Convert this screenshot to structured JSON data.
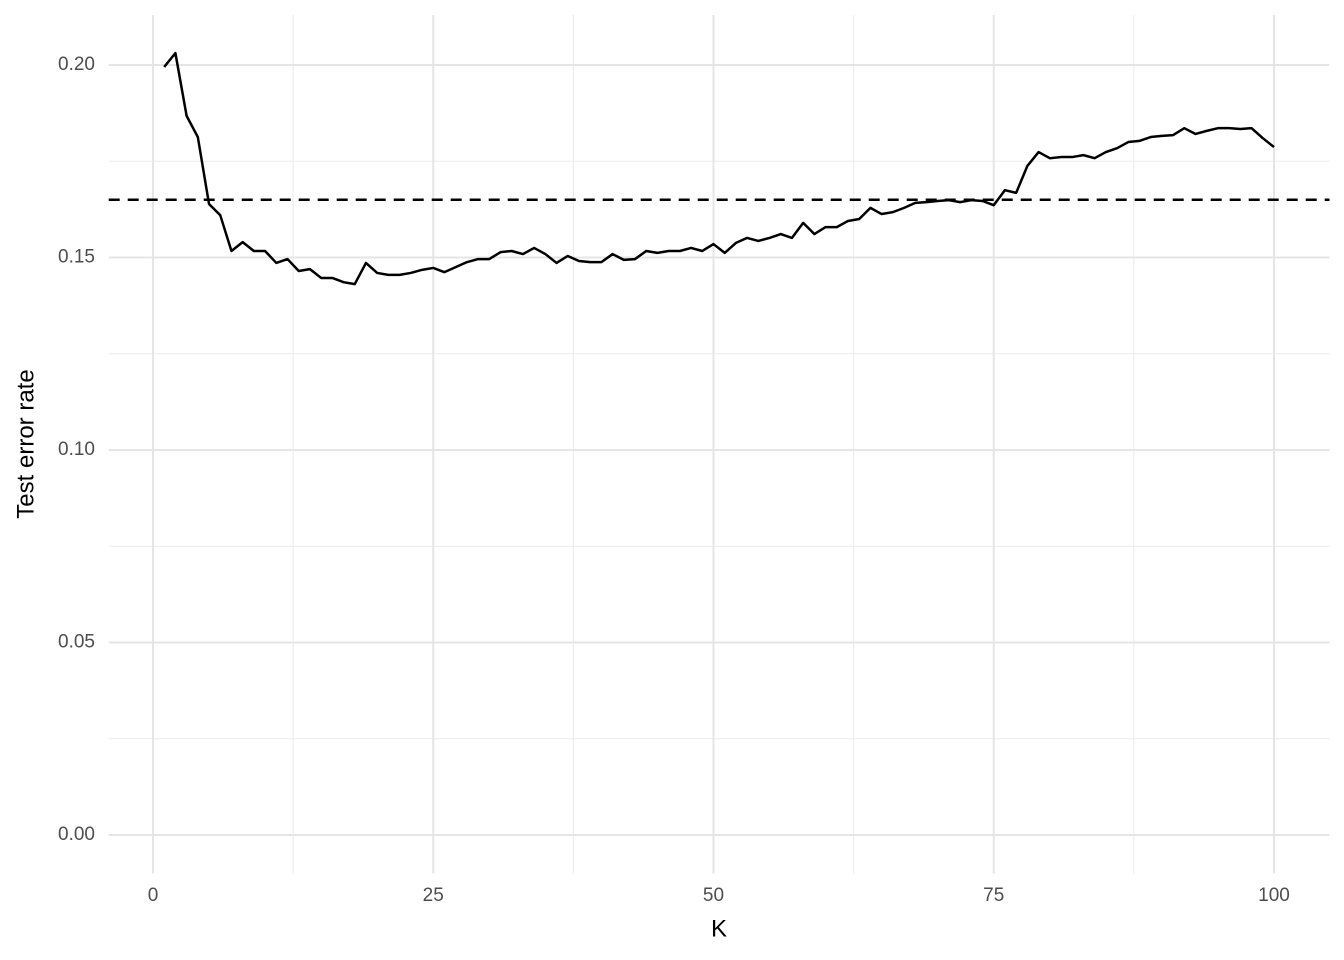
{
  "chart_data": {
    "type": "line",
    "x_label": "K",
    "y_label": "Test error rate",
    "x": [
      1,
      2,
      3,
      4,
      5,
      6,
      7,
      8,
      9,
      10,
      11,
      12,
      13,
      14,
      15,
      16,
      17,
      18,
      19,
      20,
      21,
      22,
      23,
      24,
      25,
      26,
      27,
      28,
      29,
      30,
      31,
      32,
      33,
      34,
      35,
      36,
      37,
      38,
      39,
      40,
      41,
      42,
      43,
      44,
      45,
      46,
      47,
      48,
      49,
      50,
      51,
      52,
      53,
      54,
      55,
      56,
      57,
      58,
      59,
      60,
      61,
      62,
      63,
      64,
      65,
      66,
      67,
      68,
      69,
      70,
      71,
      72,
      73,
      74,
      75,
      76,
      77,
      78,
      79,
      80,
      81,
      82,
      83,
      84,
      85,
      86,
      87,
      88,
      89,
      90,
      91,
      92,
      93,
      94,
      95,
      96,
      97,
      98,
      99,
      100
    ],
    "values": [
      0.1995,
      0.2031,
      0.1868,
      0.1813,
      0.1639,
      0.161,
      0.1517,
      0.154,
      0.1517,
      0.1517,
      0.1486,
      0.1496,
      0.1465,
      0.147,
      0.1447,
      0.1447,
      0.1436,
      0.1431,
      0.1486,
      0.146,
      0.1455,
      0.1455,
      0.146,
      0.1468,
      0.1473,
      0.1462,
      0.1475,
      0.1488,
      0.1496,
      0.1496,
      0.1514,
      0.1517,
      0.1509,
      0.1525,
      0.1509,
      0.1486,
      0.1504,
      0.1491,
      0.1488,
      0.1488,
      0.1509,
      0.1494,
      0.1496,
      0.1517,
      0.1512,
      0.1517,
      0.1517,
      0.1525,
      0.1517,
      0.1535,
      0.1512,
      0.1538,
      0.1551,
      0.1543,
      0.1551,
      0.1561,
      0.1551,
      0.159,
      0.1561,
      0.1579,
      0.1579,
      0.1595,
      0.16,
      0.1629,
      0.1613,
      0.1618,
      0.1629,
      0.1642,
      0.1644,
      0.1647,
      0.1649,
      0.1644,
      0.1649,
      0.1647,
      0.1636,
      0.1675,
      0.1668,
      0.1738,
      0.1774,
      0.1758,
      0.1761,
      0.1761,
      0.1766,
      0.1758,
      0.1774,
      0.1784,
      0.18,
      0.1803,
      0.1813,
      0.1816,
      0.1818,
      0.1836,
      0.1821,
      0.1829,
      0.1836,
      0.1836,
      0.1834,
      0.1836,
      0.181,
      0.1787
    ],
    "color": "#000000",
    "hline": 0.165,
    "xlim": [
      -3.95,
      104.95
    ],
    "ylim": [
      -0.01,
      0.213
    ],
    "xticks": [
      0,
      25,
      50,
      75,
      100
    ],
    "yticks": [
      {
        "value": 0,
        "label": "0.00"
      },
      {
        "value": 0.05,
        "label": "0.05"
      },
      {
        "value": 0.1,
        "label": "0.10"
      },
      {
        "value": 0.15,
        "label": "0.15"
      },
      {
        "value": 0.2,
        "label": "0.20"
      }
    ],
    "x_minor_ticks": [
      12.5,
      37.5,
      62.5,
      87.5
    ],
    "y_minor_ticks": [
      0.025,
      0.075,
      0.125,
      0.175
    ],
    "grid": true
  }
}
